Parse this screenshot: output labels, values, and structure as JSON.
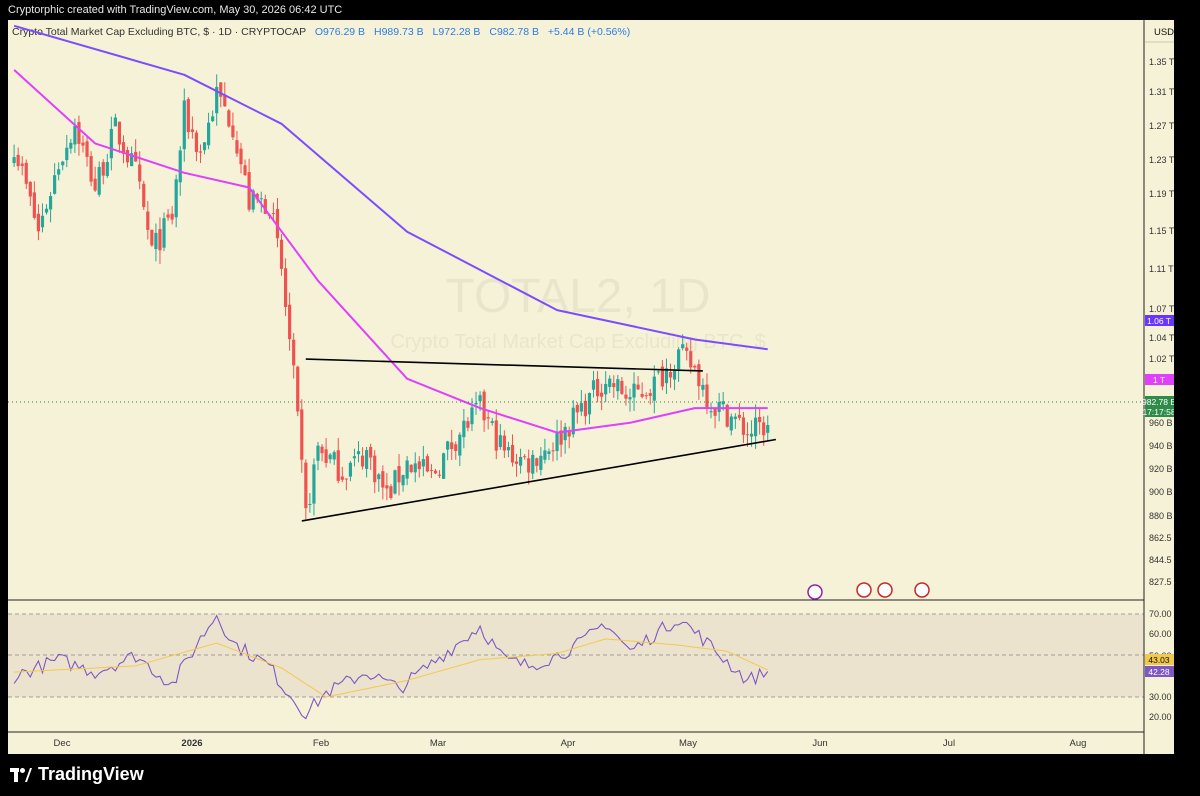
{
  "header": {
    "text": "Cryptorphic created with TradingView.com, May 30, 2026 06:42 UTC"
  },
  "symbol": {
    "name": "Crypto Total Market Cap Excluding BTC, $ · 1D · CRYPTOCAP",
    "o_label": "O",
    "o": "976.29 B",
    "h_label": "H",
    "h": "989.73 B",
    "l_label": "L",
    "l": "972.28 B",
    "c_label": "C",
    "c": "982.78 B",
    "change": "+5.44 B (+0.56%)"
  },
  "watermark": {
    "title": "TOTAL2, 1D",
    "subtitle": "Crypto Total Market Cap Excluding BTC, $"
  },
  "currency": "USD",
  "price_axis": [
    "1.35 T",
    "1.31 T",
    "1.27 T",
    "1.23 T",
    "1.19 T",
    "1.15 T",
    "1.11 T",
    "1.07 T",
    "1.04 T",
    "1.02 T",
    "960 B",
    "940 B",
    "920 B",
    "900 B",
    "880 B",
    "862.5 B",
    "844.5 B",
    "827.5 B"
  ],
  "price_badges": {
    "ma200": "1.06 T",
    "ma50": "1 T",
    "last": "982.78 B",
    "countdown": "17:17:58"
  },
  "rsi_axis": [
    "70.00",
    "60.00",
    "50.00",
    "30.00",
    "20.00"
  ],
  "rsi_badges": {
    "ma": "43.03",
    "rsi": "42.28"
  },
  "x_axis": [
    "Dec",
    "2026",
    "Feb",
    "Mar",
    "Apr",
    "May",
    "Jun",
    "Jul",
    "Aug"
  ],
  "brand": "TradingView",
  "colors": {
    "background": "#f6f2d8",
    "up": "#26a69a",
    "down": "#ef5350",
    "ma50": "#e040fb",
    "ma200": "#7b4dff",
    "rsi": "#7e57c2",
    "rsi_ma": "#f2c94c",
    "trendline": "#000000"
  },
  "chart_data": [
    {
      "type": "candlestick",
      "title": "TOTAL2, 1D",
      "x_labels": [
        "Dec",
        "2026",
        "Feb",
        "Mar",
        "Apr",
        "May",
        "Jun",
        "Jul",
        "Aug"
      ],
      "ylim": [
        820,
        1370
      ],
      "y_unit": "B USD",
      "close_series": [
        {
          "date": "2025-11-25",
          "close": 1270
        },
        {
          "date": "2025-12-01",
          "close": 1180
        },
        {
          "date": "2025-12-06",
          "close": 1250
        },
        {
          "date": "2025-12-10",
          "close": 1290
        },
        {
          "date": "2025-12-15",
          "close": 1225
        },
        {
          "date": "2025-12-20",
          "close": 1285
        },
        {
          "date": "2025-12-25",
          "close": 1240
        },
        {
          "date": "2025-12-29",
          "close": 1160
        },
        {
          "date": "2026-01-03",
          "close": 1195
        },
        {
          "date": "2026-01-06",
          "close": 1300
        },
        {
          "date": "2026-01-10",
          "close": 1260
        },
        {
          "date": "2026-01-14",
          "close": 1320
        },
        {
          "date": "2026-01-18",
          "close": 1290
        },
        {
          "date": "2026-01-22",
          "close": 1210
        },
        {
          "date": "2026-01-27",
          "close": 1210
        },
        {
          "date": "2026-01-30",
          "close": 1140
        },
        {
          "date": "2026-02-02",
          "close": 1030
        },
        {
          "date": "2026-02-05",
          "close": 890
        },
        {
          "date": "2026-02-08",
          "close": 960
        },
        {
          "date": "2026-02-14",
          "close": 935
        },
        {
          "date": "2026-02-20",
          "close": 955
        },
        {
          "date": "2026-02-25",
          "close": 910
        },
        {
          "date": "2026-03-02",
          "close": 945
        },
        {
          "date": "2026-03-08",
          "close": 930
        },
        {
          "date": "2026-03-14",
          "close": 970
        },
        {
          "date": "2026-03-20",
          "close": 1000
        },
        {
          "date": "2026-03-26",
          "close": 955
        },
        {
          "date": "2026-04-01",
          "close": 945
        },
        {
          "date": "2026-04-08",
          "close": 968
        },
        {
          "date": "2026-04-14",
          "close": 1000
        },
        {
          "date": "2026-04-20",
          "close": 1030
        },
        {
          "date": "2026-04-26",
          "close": 1010
        },
        {
          "date": "2026-05-02",
          "close": 1025
        },
        {
          "date": "2026-05-08",
          "close": 1055
        },
        {
          "date": "2026-05-12",
          "close": 1040
        },
        {
          "date": "2026-05-16",
          "close": 1005
        },
        {
          "date": "2026-05-20",
          "close": 995
        },
        {
          "date": "2026-05-25",
          "close": 975
        },
        {
          "date": "2026-05-30",
          "close": 982.78
        }
      ],
      "overlays": [
        {
          "name": "MA 50",
          "color": "#e040fb",
          "points": [
            {
              "date": "2025-11-25",
              "value": 1345
            },
            {
              "date": "2025-12-15",
              "value": 1270
            },
            {
              "date": "2026-01-06",
              "value": 1240
            },
            {
              "date": "2026-01-22",
              "value": 1225
            },
            {
              "date": "2026-02-08",
              "value": 1130
            },
            {
              "date": "2026-03-02",
              "value": 1030
            },
            {
              "date": "2026-03-20",
              "value": 1000
            },
            {
              "date": "2026-04-08",
              "value": 975
            },
            {
              "date": "2026-04-26",
              "value": 985
            },
            {
              "date": "2026-05-12",
              "value": 1000
            },
            {
              "date": "2026-05-30",
              "value": 1000
            }
          ]
        },
        {
          "name": "MA 200",
          "color": "#7b4dff",
          "points": [
            {
              "date": "2025-11-25",
              "value": 1390
            },
            {
              "date": "2026-01-06",
              "value": 1340
            },
            {
              "date": "2026-01-30",
              "value": 1290
            },
            {
              "date": "2026-03-02",
              "value": 1180
            },
            {
              "date": "2026-04-08",
              "value": 1100
            },
            {
              "date": "2026-05-12",
              "value": 1070
            },
            {
              "date": "2026-05-30",
              "value": 1060
            }
          ]
        },
        {
          "name": "Resistance line",
          "color": "#000000",
          "points": [
            {
              "date": "2026-02-05",
              "value": 1050
            },
            {
              "date": "2026-05-14",
              "value": 1038
            }
          ]
        },
        {
          "name": "Support line",
          "color": "#000000",
          "points": [
            {
              "date": "2026-02-04",
              "value": 885
            },
            {
              "date": "2026-06-01",
              "value": 968
            }
          ]
        }
      ]
    },
    {
      "type": "line",
      "title": "RSI",
      "ylim": [
        15,
        75
      ],
      "bands": [
        30,
        50,
        70
      ],
      "series": [
        {
          "name": "RSI",
          "values": [
            {
              "date": "2025-11-25",
              "value": 40
            },
            {
              "date": "2025-12-06",
              "value": 48
            },
            {
              "date": "2025-12-15",
              "value": 42
            },
            {
              "date": "2025-12-25",
              "value": 50
            },
            {
              "date": "2026-01-03",
              "value": 36
            },
            {
              "date": "2026-01-10",
              "value": 58
            },
            {
              "date": "2026-01-14",
              "value": 70
            },
            {
              "date": "2026-01-18",
              "value": 56
            },
            {
              "date": "2026-01-27",
              "value": 45
            },
            {
              "date": "2026-01-30",
              "value": 36
            },
            {
              "date": "2026-02-05",
              "value": 22
            },
            {
              "date": "2026-02-10",
              "value": 32
            },
            {
              "date": "2026-02-20",
              "value": 42
            },
            {
              "date": "2026-02-28",
              "value": 34
            },
            {
              "date": "2026-03-08",
              "value": 46
            },
            {
              "date": "2026-03-20",
              "value": 64
            },
            {
              "date": "2026-03-26",
              "value": 48
            },
            {
              "date": "2026-04-01",
              "value": 45
            },
            {
              "date": "2026-04-08",
              "value": 50
            },
            {
              "date": "2026-04-14",
              "value": 56
            },
            {
              "date": "2026-04-20",
              "value": 66
            },
            {
              "date": "2026-04-26",
              "value": 52
            },
            {
              "date": "2026-05-08",
              "value": 68
            },
            {
              "date": "2026-05-14",
              "value": 58
            },
            {
              "date": "2026-05-20",
              "value": 47
            },
            {
              "date": "2026-05-25",
              "value": 38
            },
            {
              "date": "2026-05-30",
              "value": 42.28
            }
          ]
        },
        {
          "name": "RSI MA",
          "values": [
            {
              "date": "2025-11-25",
              "value": 42
            },
            {
              "date": "2025-12-25",
              "value": 45
            },
            {
              "date": "2026-01-14",
              "value": 56
            },
            {
              "date": "2026-01-30",
              "value": 44
            },
            {
              "date": "2026-02-10",
              "value": 30
            },
            {
              "date": "2026-03-02",
              "value": 38
            },
            {
              "date": "2026-03-20",
              "value": 48
            },
            {
              "date": "2026-04-08",
              "value": 51
            },
            {
              "date": "2026-04-20",
              "value": 58
            },
            {
              "date": "2026-05-08",
              "value": 55
            },
            {
              "date": "2026-05-20",
              "value": 52
            },
            {
              "date": "2026-05-30",
              "value": 43.03
            }
          ]
        }
      ]
    }
  ]
}
